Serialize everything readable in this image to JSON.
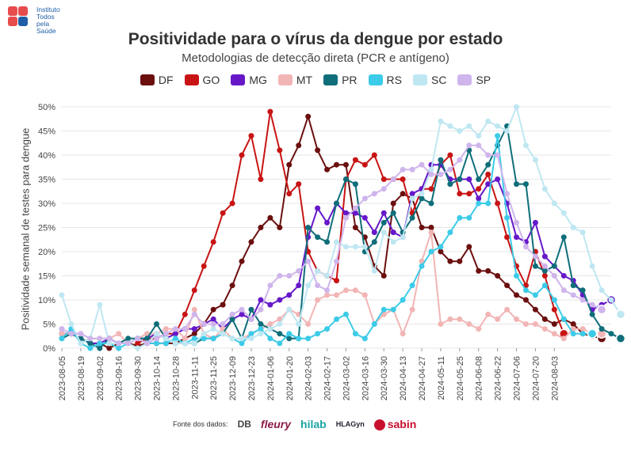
{
  "logo": {
    "lines": [
      "Instituto",
      "Todos",
      "pela",
      "Saúde"
    ]
  },
  "chart_data": {
    "type": "line",
    "title": "Positividade para o vírus da dengue por estado",
    "subtitle": "Metodologias de detecção direta (PCR e antígeno)",
    "ylabel": "Positividade semanal de testes para dengue",
    "xlabel": "",
    "ylim": [
      0,
      50
    ],
    "yticks": [
      0,
      5,
      10,
      15,
      20,
      25,
      30,
      35,
      40,
      45,
      50
    ],
    "ytick_labels": [
      "0%",
      "5%",
      "10%",
      "15%",
      "20%",
      "25%",
      "30%",
      "35%",
      "40%",
      "45%",
      "50%"
    ],
    "x_start": "2023-08-05",
    "x_labels": [
      "2023-08-05",
      "2023-08-19",
      "2023-09-02",
      "2023-09-16",
      "2023-09-30",
      "2023-10-14",
      "2023-10-28",
      "2023-11-11",
      "2023-11-25",
      "2023-12-09",
      "2023-12-23",
      "2024-01-06",
      "2024-01-20",
      "2024-02-03",
      "2024-02-17",
      "2024-03-02",
      "2024-03-16",
      "2024-03-30",
      "2024-04-13",
      "2024-04-27",
      "2024-05-11",
      "2024-05-25",
      "2024-06-08",
      "2024-06-22",
      "2024-07-06",
      "2024-07-20",
      "2024-08-03"
    ],
    "legend_position": "top-center",
    "grid": true,
    "series": [
      {
        "name": "DF",
        "color": "#6b0f0f",
        "start": 0,
        "values": [
          3,
          3,
          2,
          1,
          1,
          0,
          1,
          1,
          0.5,
          1,
          1,
          1,
          1,
          2,
          3,
          5,
          8,
          9,
          13,
          18,
          22,
          25,
          27,
          25,
          38,
          42,
          48,
          41,
          37,
          38,
          38,
          25,
          23,
          17,
          15,
          30,
          32,
          31,
          25,
          25,
          20,
          18,
          18,
          21,
          16,
          16,
          15,
          13,
          11,
          10,
          8,
          6,
          5,
          6,
          5,
          3,
          2.5,
          2
        ]
      },
      {
        "name": "GO",
        "color": "#c81414",
        "start": 8,
        "values": [
          1,
          2,
          2,
          3,
          3,
          7,
          12,
          17,
          22,
          28,
          30,
          40,
          44,
          35,
          49,
          41,
          32,
          34,
          20,
          16,
          15,
          14,
          35,
          39,
          38,
          40,
          35,
          35,
          35,
          28,
          33,
          33,
          38,
          40,
          32,
          32,
          33,
          36,
          30,
          23,
          17,
          13,
          20,
          15,
          8,
          3
        ]
      },
      {
        "name": "MG",
        "color": "#6618c9",
        "start": 0,
        "values": [
          3,
          3,
          2,
          1,
          1,
          2,
          1,
          1,
          2,
          2,
          3,
          2,
          3,
          4,
          4,
          5,
          6,
          4,
          6,
          7,
          6,
          10,
          9,
          10,
          11,
          13,
          23,
          29,
          26,
          30,
          28,
          28,
          27,
          24,
          28,
          24,
          23,
          32,
          33,
          38,
          38,
          35,
          35,
          35,
          31,
          34,
          35,
          30,
          23,
          22,
          26,
          19,
          17,
          15,
          14,
          11,
          8,
          9,
          10
        ]
      },
      {
        "name": "MT",
        "color": "#f2b5b5",
        "start": 0,
        "values": [
          3,
          3,
          3,
          2,
          2,
          2,
          3,
          1,
          2,
          3,
          3,
          4,
          4,
          2,
          8,
          3,
          2,
          4,
          2,
          2,
          3,
          4,
          5,
          6,
          8,
          7,
          5,
          10,
          11,
          11,
          12,
          12,
          11,
          5,
          7,
          8,
          3,
          8,
          18,
          24,
          5,
          6,
          6,
          5,
          4,
          7,
          6,
          8,
          6,
          5,
          5,
          4,
          3,
          2,
          4,
          4,
          3,
          3
        ]
      },
      {
        "name": "PR",
        "color": "#0f6e7a",
        "start": 0,
        "values": [
          2,
          3,
          2,
          1,
          0,
          2,
          1,
          2,
          2,
          2,
          5,
          2,
          1,
          1,
          1,
          2,
          2,
          3,
          6,
          2,
          8,
          5,
          4,
          3,
          2,
          2,
          25,
          23,
          22,
          30,
          35,
          34,
          20,
          22,
          26,
          28,
          24,
          27,
          31,
          30,
          39,
          34,
          35,
          41,
          35,
          38,
          42,
          46,
          34,
          34,
          17,
          16,
          17,
          23,
          13,
          12,
          7,
          4,
          3,
          2
        ]
      },
      {
        "name": "RS",
        "color": "#3ccbe8",
        "start": 0,
        "values": [
          2,
          4,
          1,
          0,
          1,
          1,
          0,
          1,
          2,
          1,
          1,
          1,
          2,
          1,
          2,
          2,
          2,
          3,
          2,
          1,
          3,
          4,
          2,
          1,
          3,
          2,
          2,
          3,
          4,
          6,
          7,
          3,
          2,
          5,
          8,
          8,
          10,
          13,
          17,
          20,
          21,
          24,
          27,
          27,
          30,
          30,
          44,
          27,
          15,
          12,
          11,
          13,
          10,
          6,
          3,
          3,
          3
        ]
      },
      {
        "name": "SC",
        "color": "#bfe7f2",
        "start": 0,
        "values": [
          11,
          5,
          1,
          2,
          9,
          1,
          1,
          1,
          0,
          1,
          3,
          2,
          1,
          1,
          1,
          3,
          4,
          3,
          2,
          2,
          2,
          3,
          4,
          5,
          8,
          5,
          13,
          16,
          15,
          22,
          21,
          21,
          21,
          16,
          24,
          22,
          23,
          31,
          32,
          37,
          47,
          46,
          45,
          46,
          44,
          47,
          46,
          45,
          50,
          42,
          39,
          33,
          30,
          28,
          25,
          24,
          17,
          12,
          10,
          7
        ]
      },
      {
        "name": "SP",
        "color": "#cfb5ec",
        "start": 0,
        "values": [
          4,
          3,
          3,
          2,
          2,
          2,
          1,
          1,
          2,
          1,
          2,
          3,
          4,
          4,
          7,
          5,
          5,
          5,
          7,
          8,
          6,
          8,
          13,
          15,
          15,
          16,
          18,
          13,
          12,
          18,
          27,
          29,
          31,
          32,
          33,
          35,
          37,
          37,
          38,
          36,
          36,
          37,
          39,
          42,
          42,
          40,
          40,
          32,
          26,
          21,
          19,
          17,
          15,
          12,
          11,
          10,
          9,
          8
        ]
      }
    ]
  },
  "footer": {
    "label": "Fonte dos dados:",
    "sources": [
      "DB",
      "fleury",
      "hilab",
      "HLAGyn",
      "sabin"
    ]
  }
}
